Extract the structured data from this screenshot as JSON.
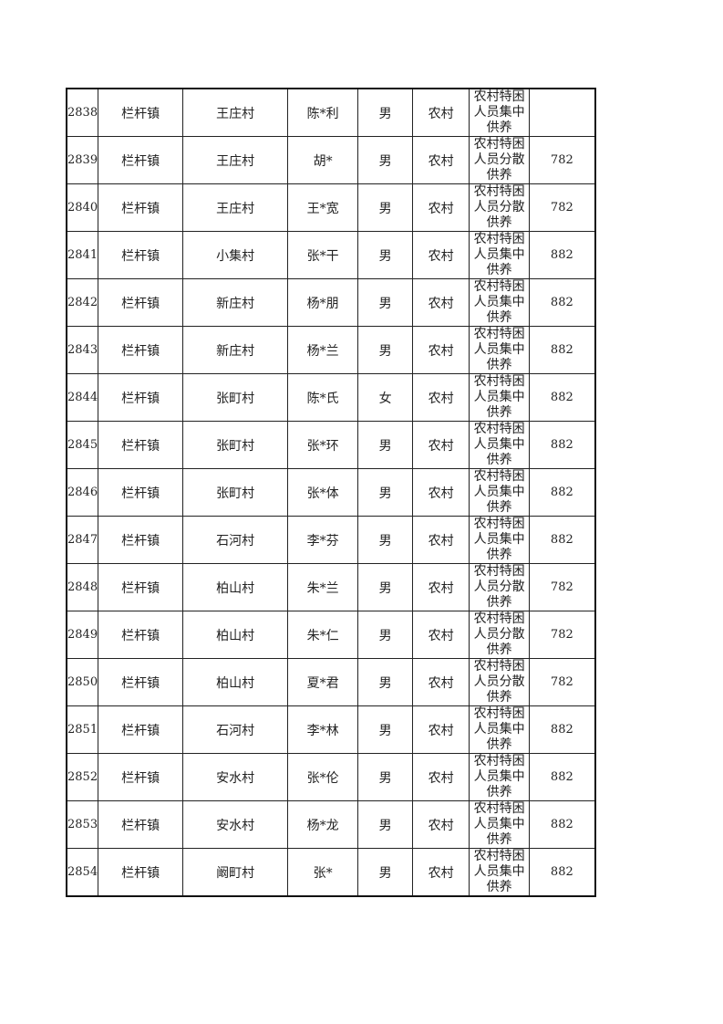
{
  "table": {
    "rows": [
      {
        "no": "2838",
        "town": "栏杆镇",
        "village": "王庄村",
        "name": "陈*利",
        "gender": "男",
        "area": "农村",
        "type": "农村特困人员集中供养",
        "amount": ""
      },
      {
        "no": "2839",
        "town": "栏杆镇",
        "village": "王庄村",
        "name": "胡*",
        "gender": "男",
        "area": "农村",
        "type": "农村特困人员分散供养",
        "amount": "782"
      },
      {
        "no": "2840",
        "town": "栏杆镇",
        "village": "王庄村",
        "name": "王*宽",
        "gender": "男",
        "area": "农村",
        "type": "农村特困人员分散供养",
        "amount": "782"
      },
      {
        "no": "2841",
        "town": "栏杆镇",
        "village": "小集村",
        "name": "张*干",
        "gender": "男",
        "area": "农村",
        "type": "农村特困人员集中供养",
        "amount": "882"
      },
      {
        "no": "2842",
        "town": "栏杆镇",
        "village": "新庄村",
        "name": "杨*朋",
        "gender": "男",
        "area": "农村",
        "type": "农村特困人员集中供养",
        "amount": "882"
      },
      {
        "no": "2843",
        "town": "栏杆镇",
        "village": "新庄村",
        "name": "杨*兰",
        "gender": "男",
        "area": "农村",
        "type": "农村特困人员集中供养",
        "amount": "882"
      },
      {
        "no": "2844",
        "town": "栏杆镇",
        "village": "张町村",
        "name": "陈*氏",
        "gender": "女",
        "area": "农村",
        "type": "农村特困人员集中供养",
        "amount": "882"
      },
      {
        "no": "2845",
        "town": "栏杆镇",
        "village": "张町村",
        "name": "张*环",
        "gender": "男",
        "area": "农村",
        "type": "农村特困人员集中供养",
        "amount": "882"
      },
      {
        "no": "2846",
        "town": "栏杆镇",
        "village": "张町村",
        "name": "张*体",
        "gender": "男",
        "area": "农村",
        "type": "农村特困人员集中供养",
        "amount": "882"
      },
      {
        "no": "2847",
        "town": "栏杆镇",
        "village": "石河村",
        "name": "李*芬",
        "gender": "男",
        "area": "农村",
        "type": "农村特困人员集中供养",
        "amount": "882"
      },
      {
        "no": "2848",
        "town": "栏杆镇",
        "village": "柏山村",
        "name": "朱*兰",
        "gender": "男",
        "area": "农村",
        "type": "农村特困人员分散供养",
        "amount": "782"
      },
      {
        "no": "2849",
        "town": "栏杆镇",
        "village": "柏山村",
        "name": "朱*仁",
        "gender": "男",
        "area": "农村",
        "type": "农村特困人员分散供养",
        "amount": "782"
      },
      {
        "no": "2850",
        "town": "栏杆镇",
        "village": "柏山村",
        "name": "夏*君",
        "gender": "男",
        "area": "农村",
        "type": "农村特困人员分散供养",
        "amount": "782"
      },
      {
        "no": "2851",
        "town": "栏杆镇",
        "village": "石河村",
        "name": "李*林",
        "gender": "男",
        "area": "农村",
        "type": "农村特困人员集中供养",
        "amount": "882"
      },
      {
        "no": "2852",
        "town": "栏杆镇",
        "village": "安水村",
        "name": "张*伦",
        "gender": "男",
        "area": "农村",
        "type": "农村特困人员集中供养",
        "amount": "882"
      },
      {
        "no": "2853",
        "town": "栏杆镇",
        "village": "安水村",
        "name": "杨*龙",
        "gender": "男",
        "area": "农村",
        "type": "农村特困人员集中供养",
        "amount": "882"
      },
      {
        "no": "2854",
        "town": "栏杆镇",
        "village": "阚町村",
        "name": "张*",
        "gender": "男",
        "area": "农村",
        "type": "农村特困人员集中供养",
        "amount": "882"
      }
    ]
  }
}
